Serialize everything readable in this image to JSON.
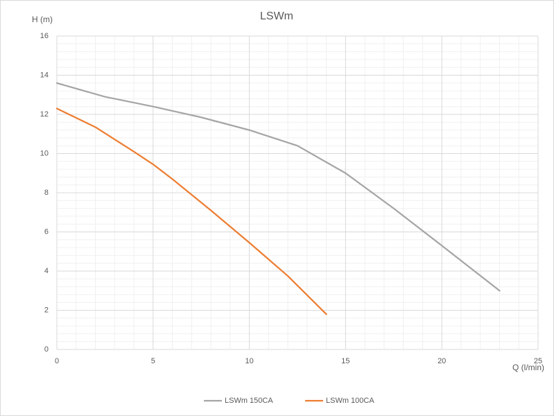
{
  "chart_data": {
    "type": "line",
    "title": "LSWm",
    "x_label": "Q (l/min)",
    "y_label": "H (m)",
    "series": [
      {
        "name": "LSWm 150CA",
        "color": "#a5a5a5",
        "x": [
          0,
          2.5,
          5,
          7.5,
          10,
          12.5,
          15,
          17.5,
          20,
          23
        ],
        "values": [
          13.6,
          12.9,
          12.4,
          11.85,
          11.2,
          10.4,
          9.0,
          7.2,
          5.3,
          3.0
        ]
      },
      {
        "name": "LSWm 100CA",
        "color": "#ed7d31",
        "x": [
          0,
          2,
          4,
          5,
          6,
          8,
          10,
          12,
          14
        ],
        "values": [
          12.3,
          11.35,
          10.1,
          9.45,
          8.7,
          7.1,
          5.45,
          3.75,
          1.8
        ]
      }
    ],
    "xlim": [
      0,
      25
    ],
    "xticks": [
      0,
      5,
      10,
      15,
      20,
      25
    ],
    "ylim": [
      0,
      16
    ],
    "yticks": [
      0,
      2,
      4,
      6,
      8,
      10,
      12,
      14,
      16
    ],
    "grid": true,
    "legend": "bottom"
  }
}
